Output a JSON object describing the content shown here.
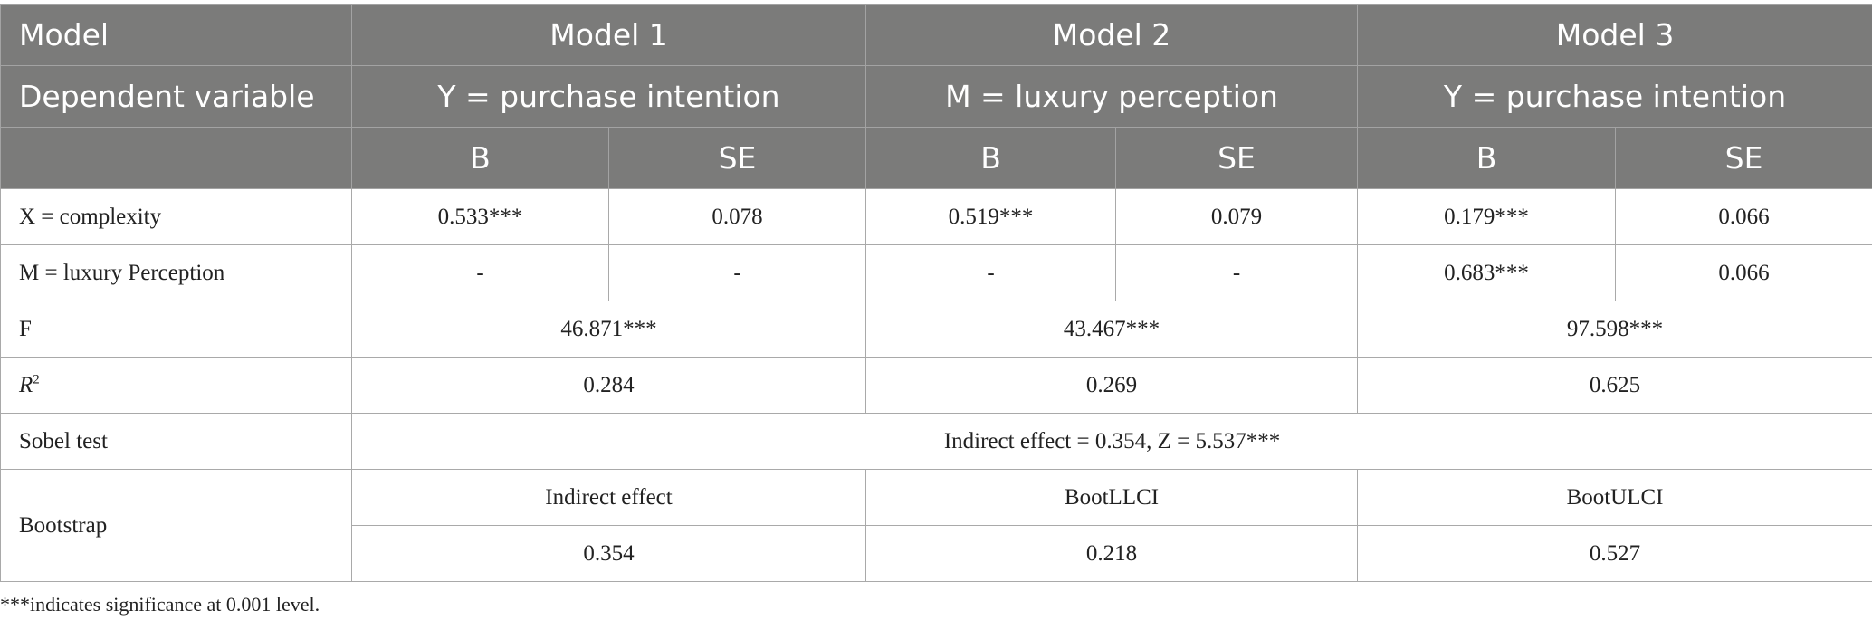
{
  "header": {
    "row1": {
      "label": "Model",
      "models": [
        "Model 1",
        "Model 2",
        "Model 3"
      ]
    },
    "row2": {
      "label": "Dependent variable",
      "dependents": [
        "Y = purchase intention",
        "M = luxury perception",
        "Y = purchase intention"
      ]
    },
    "row3": {
      "label": "",
      "subcols": [
        "B",
        "SE",
        "B",
        "SE",
        "B",
        "SE"
      ]
    }
  },
  "rows": {
    "complexity": {
      "label": "X = complexity",
      "values": [
        "0.533***",
        "0.078",
        "0.519***",
        "0.079",
        "0.179***",
        "0.066"
      ]
    },
    "luxury": {
      "label": "M = luxury Perception",
      "values": [
        "-",
        "-",
        "-",
        "-",
        "0.683***",
        "0.066"
      ]
    },
    "f": {
      "label": "F",
      "values": [
        "46.871***",
        "43.467***",
        "97.598***"
      ]
    },
    "r2": {
      "label_main": "R",
      "label_sup": "2",
      "values": [
        "0.284",
        "0.269",
        "0.625"
      ]
    },
    "sobel": {
      "label": "Sobel test",
      "value": "Indirect effect = 0.354, Z = 5.537***"
    },
    "bootstrap": {
      "label": "Bootstrap",
      "headers": [
        "Indirect effect",
        "BootLLCI",
        "BootULCI"
      ],
      "values": [
        "0.354",
        "0.218",
        "0.527"
      ]
    }
  },
  "footnote": "***indicates significance at 0.001 level."
}
